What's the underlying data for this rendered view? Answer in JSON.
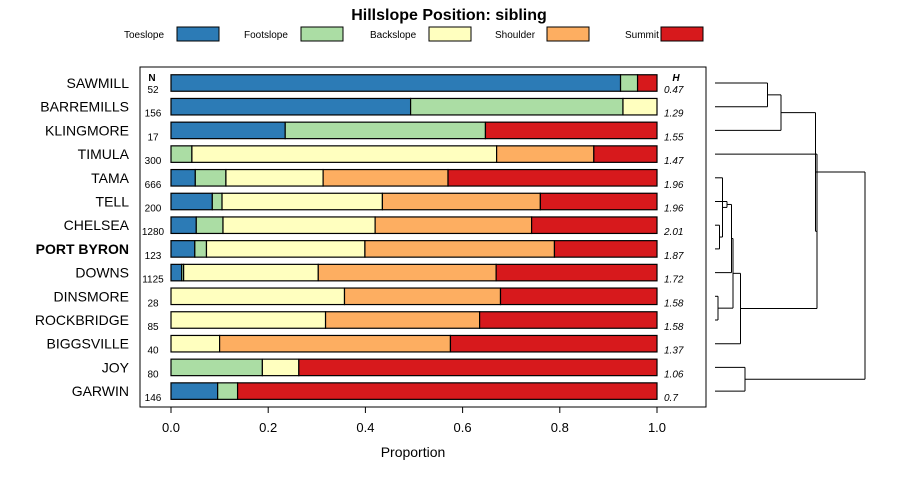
{
  "chart_data": {
    "type": "bar",
    "stacked": true,
    "orientation": "horizontal",
    "title": "Hillslope Position: sibling",
    "xlabel": "Proportion",
    "xlim": [
      0,
      1
    ],
    "xticks": [
      "0.0",
      "0.2",
      "0.4",
      "0.6",
      "0.8",
      "1.0"
    ],
    "n_header": "N",
    "h_header": "H",
    "legend_position": "top",
    "legend": [
      {
        "name": "Toeslope",
        "color": "#2c7bb6"
      },
      {
        "name": "Footslope",
        "color": "#abdda4"
      },
      {
        "name": "Backslope",
        "color": "#ffffbf"
      },
      {
        "name": "Shoulder",
        "color": "#fdae61"
      },
      {
        "name": "Summit",
        "color": "#d7191c"
      }
    ],
    "rows": [
      {
        "name": "SAWMILL",
        "n": "52",
        "h": "0.47",
        "values": [
          0.925,
          0.035,
          0,
          0,
          0.04
        ]
      },
      {
        "name": "BARREMILLS",
        "n": "156",
        "h": "1.29",
        "values": [
          0.493,
          0.437,
          0.07,
          0,
          0
        ]
      },
      {
        "name": "KLINGMORE",
        "n": "17",
        "h": "1.55",
        "values": [
          0.235,
          0.412,
          0,
          0,
          0.353
        ]
      },
      {
        "name": "TIMULA",
        "n": "300",
        "h": "1.47",
        "values": [
          0,
          0.043,
          0.627,
          0.2,
          0.13
        ]
      },
      {
        "name": "TAMA",
        "n": "666",
        "h": "1.96",
        "values": [
          0.05,
          0.063,
          0.2,
          0.257,
          0.43
        ]
      },
      {
        "name": "TELL",
        "n": "200",
        "h": "1.96",
        "values": [
          0.085,
          0.02,
          0.33,
          0.325,
          0.24
        ]
      },
      {
        "name": "CHELSEA",
        "n": "1280",
        "h": "2.01",
        "values": [
          0.052,
          0.055,
          0.313,
          0.322,
          0.258
        ]
      },
      {
        "name": "PORT BYRON",
        "n": "123",
        "h": "1.87",
        "values": [
          0.049,
          0.024,
          0.326,
          0.39,
          0.211
        ],
        "bold": true
      },
      {
        "name": "DOWNS",
        "n": "1125",
        "h": "1.72",
        "values": [
          0.022,
          0.004,
          0.277,
          0.366,
          0.331
        ]
      },
      {
        "name": "DINSMORE",
        "n": "28",
        "h": "1.58",
        "values": [
          0,
          0,
          0.357,
          0.321,
          0.322
        ]
      },
      {
        "name": "ROCKBRIDGE",
        "n": "85",
        "h": "1.58",
        "values": [
          0,
          0,
          0.318,
          0.317,
          0.365
        ]
      },
      {
        "name": "BIGGSVILLE",
        "n": "40",
        "h": "1.37",
        "values": [
          0,
          0,
          0.1,
          0.475,
          0.425
        ]
      },
      {
        "name": "JOY",
        "n": "80",
        "h": "1.06",
        "values": [
          0,
          0.188,
          0.075,
          0,
          0.737
        ]
      },
      {
        "name": "GARWIN",
        "n": "146",
        "h": "0.7",
        "values": [
          0.096,
          0.041,
          0,
          0,
          0.863
        ]
      }
    ],
    "dendrogram": [
      [
        0,
        1
      ],
      [
        14,
        2
      ],
      [
        6,
        7
      ],
      [
        4,
        16
      ],
      [
        5,
        17
      ],
      [
        8,
        18
      ],
      [
        9,
        10
      ],
      [
        19,
        20
      ],
      [
        11,
        21
      ],
      [
        3,
        22
      ],
      [
        12,
        13
      ],
      [
        15,
        23
      ],
      [
        24,
        25
      ]
    ]
  }
}
